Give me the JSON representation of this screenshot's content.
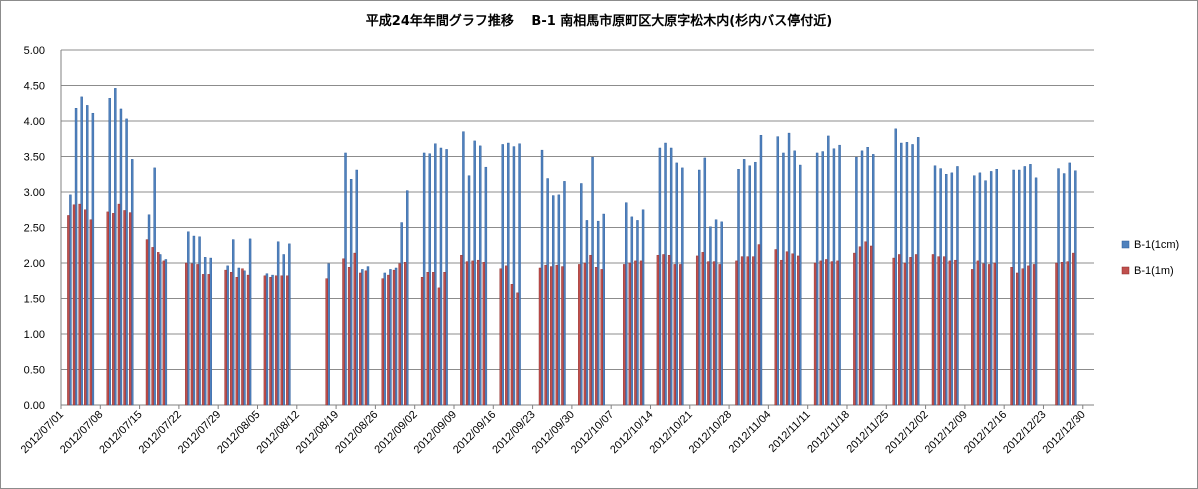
{
  "chart_data": {
    "type": "bar",
    "title": "平成24年年間グラフ推移　 B-1 南相馬市原町区大原字松木内(杉内バス停付近)",
    "xlabel": "",
    "ylabel": "",
    "ylim": [
      0,
      5
    ],
    "yticks": [
      "0.00",
      "0.50",
      "1.00",
      "1.50",
      "2.00",
      "2.50",
      "3.00",
      "3.50",
      "4.00",
      "4.50",
      "5.00"
    ],
    "grid": true,
    "legend_position": "right",
    "x_tick_labels": [
      "2012/07/01",
      "2012/07/08",
      "2012/07/15",
      "2012/07/22",
      "2012/07/29",
      "2012/08/05",
      "2012/08/12",
      "2012/08/19",
      "2012/08/26",
      "2012/09/02",
      "2012/09/09",
      "2012/09/16",
      "2012/09/23",
      "2012/09/30",
      "2012/10/07",
      "2012/10/14",
      "2012/10/21",
      "2012/10/28",
      "2012/11/04",
      "2012/11/11",
      "2012/11/18",
      "2012/11/25",
      "2012/12/02",
      "2012/12/09",
      "2012/12/16",
      "2012/12/23",
      "2012/12/30"
    ],
    "x_start": "2012/07/01",
    "x_end": "2012/12/31",
    "series": [
      {
        "name": "B-1(1cm)",
        "color": "#4f81bd",
        "edge": "#2a5a9a",
        "points": [
          [
            "2012/07/02",
            2.96
          ],
          [
            "2012/07/03",
            4.18
          ],
          [
            "2012/07/04",
            4.34
          ],
          [
            "2012/07/05",
            4.22
          ],
          [
            "2012/07/06",
            4.11
          ],
          [
            "2012/07/09",
            4.32
          ],
          [
            "2012/07/10",
            4.46
          ],
          [
            "2012/07/11",
            4.17
          ],
          [
            "2012/07/12",
            4.03
          ],
          [
            "2012/07/13",
            3.46
          ],
          [
            "2012/07/16",
            2.68
          ],
          [
            "2012/07/17",
            3.34
          ],
          [
            "2012/07/18",
            2.12
          ],
          [
            "2012/07/19",
            2.05
          ],
          [
            "2012/07/23",
            2.44
          ],
          [
            "2012/07/24",
            2.38
          ],
          [
            "2012/07/25",
            2.37
          ],
          [
            "2012/07/26",
            2.08
          ],
          [
            "2012/07/27",
            2.07
          ],
          [
            "2012/07/30",
            1.96
          ],
          [
            "2012/07/31",
            2.33
          ],
          [
            "2012/08/01",
            1.93
          ],
          [
            "2012/08/02",
            1.89
          ],
          [
            "2012/08/03",
            2.34
          ],
          [
            "2012/08/06",
            1.85
          ],
          [
            "2012/08/07",
            1.83
          ],
          [
            "2012/08/08",
            2.3
          ],
          [
            "2012/08/09",
            2.12
          ],
          [
            "2012/08/10",
            2.27
          ],
          [
            "2012/08/17",
            1.99
          ],
          [
            "2012/08/20",
            3.55
          ],
          [
            "2012/08/21",
            3.18
          ],
          [
            "2012/08/22",
            3.31
          ],
          [
            "2012/08/23",
            1.91
          ],
          [
            "2012/08/24",
            1.95
          ],
          [
            "2012/08/27",
            1.86
          ],
          [
            "2012/08/28",
            1.91
          ],
          [
            "2012/08/29",
            1.93
          ],
          [
            "2012/08/30",
            2.57
          ],
          [
            "2012/08/31",
            3.02
          ],
          [
            "2012/09/03",
            3.55
          ],
          [
            "2012/09/04",
            3.54
          ],
          [
            "2012/09/05",
            3.68
          ],
          [
            "2012/09/06",
            3.62
          ],
          [
            "2012/09/07",
            3.6
          ],
          [
            "2012/09/10",
            3.85
          ],
          [
            "2012/09/11",
            3.23
          ],
          [
            "2012/09/12",
            3.72
          ],
          [
            "2012/09/13",
            3.65
          ],
          [
            "2012/09/14",
            3.35
          ],
          [
            "2012/09/17",
            3.67
          ],
          [
            "2012/09/18",
            3.69
          ],
          [
            "2012/09/19",
            3.64
          ],
          [
            "2012/09/20",
            3.68
          ],
          [
            "2012/09/24",
            3.59
          ],
          [
            "2012/09/25",
            3.19
          ],
          [
            "2012/09/26",
            2.95
          ],
          [
            "2012/09/27",
            2.96
          ],
          [
            "2012/09/28",
            3.15
          ],
          [
            "2012/10/01",
            3.12
          ],
          [
            "2012/10/02",
            2.6
          ],
          [
            "2012/10/03",
            3.49
          ],
          [
            "2012/10/04",
            2.59
          ],
          [
            "2012/10/05",
            2.69
          ],
          [
            "2012/10/09",
            2.85
          ],
          [
            "2012/10/10",
            2.65
          ],
          [
            "2012/10/11",
            2.6
          ],
          [
            "2012/10/12",
            2.75
          ],
          [
            "2012/10/15",
            3.62
          ],
          [
            "2012/10/16",
            3.69
          ],
          [
            "2012/10/17",
            3.62
          ],
          [
            "2012/10/18",
            3.41
          ],
          [
            "2012/10/19",
            3.34
          ],
          [
            "2012/10/22",
            3.31
          ],
          [
            "2012/10/23",
            3.48
          ],
          [
            "2012/10/24",
            2.51
          ],
          [
            "2012/10/25",
            2.61
          ],
          [
            "2012/10/26",
            2.58
          ],
          [
            "2012/10/29",
            3.32
          ],
          [
            "2012/10/30",
            3.46
          ],
          [
            "2012/10/31",
            3.37
          ],
          [
            "2012/11/01",
            3.42
          ],
          [
            "2012/11/02",
            3.8
          ],
          [
            "2012/11/05",
            3.78
          ],
          [
            "2012/11/06",
            3.55
          ],
          [
            "2012/11/07",
            3.83
          ],
          [
            "2012/11/08",
            3.58
          ],
          [
            "2012/11/09",
            3.38
          ],
          [
            "2012/11/12",
            3.55
          ],
          [
            "2012/11/13",
            3.57
          ],
          [
            "2012/11/14",
            3.79
          ],
          [
            "2012/11/15",
            3.61
          ],
          [
            "2012/11/16",
            3.66
          ],
          [
            "2012/11/19",
            3.49
          ],
          [
            "2012/11/20",
            3.58
          ],
          [
            "2012/11/21",
            3.63
          ],
          [
            "2012/11/22",
            3.53
          ],
          [
            "2012/11/26",
            3.89
          ],
          [
            "2012/11/27",
            3.69
          ],
          [
            "2012/11/28",
            3.7
          ],
          [
            "2012/11/29",
            3.67
          ],
          [
            "2012/11/30",
            3.77
          ],
          [
            "2012/12/03",
            3.37
          ],
          [
            "2012/12/04",
            3.33
          ],
          [
            "2012/12/05",
            3.25
          ],
          [
            "2012/12/06",
            3.27
          ],
          [
            "2012/12/07",
            3.36
          ],
          [
            "2012/12/10",
            3.23
          ],
          [
            "2012/12/11",
            3.27
          ],
          [
            "2012/12/12",
            3.16
          ],
          [
            "2012/12/13",
            3.29
          ],
          [
            "2012/12/14",
            3.32
          ],
          [
            "2012/12/17",
            3.31
          ],
          [
            "2012/12/18",
            3.31
          ],
          [
            "2012/12/19",
            3.36
          ],
          [
            "2012/12/20",
            3.39
          ],
          [
            "2012/12/21",
            3.2
          ],
          [
            "2012/12/25",
            3.33
          ],
          [
            "2012/12/26",
            3.26
          ],
          [
            "2012/12/27",
            3.41
          ],
          [
            "2012/12/28",
            3.3
          ]
        ]
      },
      {
        "name": "B-1(1m)",
        "color": "#c0504d",
        "edge": "#8c2b29",
        "points": [
          [
            "2012/07/02",
            2.67
          ],
          [
            "2012/07/03",
            2.82
          ],
          [
            "2012/07/04",
            2.83
          ],
          [
            "2012/07/05",
            2.75
          ],
          [
            "2012/07/06",
            2.61
          ],
          [
            "2012/07/09",
            2.72
          ],
          [
            "2012/07/10",
            2.7
          ],
          [
            "2012/07/11",
            2.83
          ],
          [
            "2012/07/12",
            2.74
          ],
          [
            "2012/07/13",
            2.71
          ],
          [
            "2012/07/16",
            2.33
          ],
          [
            "2012/07/17",
            2.22
          ],
          [
            "2012/07/18",
            2.15
          ],
          [
            "2012/07/19",
            2.03
          ],
          [
            "2012/07/23",
            2.0
          ],
          [
            "2012/07/24",
            1.99
          ],
          [
            "2012/07/25",
            1.98
          ],
          [
            "2012/07/26",
            1.84
          ],
          [
            "2012/07/27",
            1.84
          ],
          [
            "2012/07/30",
            1.9
          ],
          [
            "2012/07/31",
            1.87
          ],
          [
            "2012/08/01",
            1.8
          ],
          [
            "2012/08/02",
            1.92
          ],
          [
            "2012/08/03",
            1.83
          ],
          [
            "2012/08/06",
            1.82
          ],
          [
            "2012/08/07",
            1.8
          ],
          [
            "2012/08/08",
            1.82
          ],
          [
            "2012/08/09",
            1.82
          ],
          [
            "2012/08/10",
            1.82
          ],
          [
            "2012/08/17",
            1.78
          ],
          [
            "2012/08/20",
            2.06
          ],
          [
            "2012/08/21",
            1.94
          ],
          [
            "2012/08/22",
            2.14
          ],
          [
            "2012/08/23",
            1.86
          ],
          [
            "2012/08/24",
            1.89
          ],
          [
            "2012/08/27",
            1.78
          ],
          [
            "2012/08/28",
            1.83
          ],
          [
            "2012/08/29",
            1.9
          ],
          [
            "2012/08/30",
            1.99
          ],
          [
            "2012/08/31",
            2.01
          ],
          [
            "2012/09/03",
            1.8
          ],
          [
            "2012/09/04",
            1.87
          ],
          [
            "2012/09/05",
            1.87
          ],
          [
            "2012/09/06",
            1.65
          ],
          [
            "2012/09/07",
            1.87
          ],
          [
            "2012/09/10",
            2.11
          ],
          [
            "2012/09/11",
            2.02
          ],
          [
            "2012/09/12",
            2.03
          ],
          [
            "2012/09/13",
            2.04
          ],
          [
            "2012/09/14",
            2.01
          ],
          [
            "2012/09/17",
            1.92
          ],
          [
            "2012/09/18",
            1.96
          ],
          [
            "2012/09/19",
            1.7
          ],
          [
            "2012/09/20",
            1.58
          ],
          [
            "2012/09/24",
            1.93
          ],
          [
            "2012/09/25",
            1.97
          ],
          [
            "2012/09/26",
            1.95
          ],
          [
            "2012/09/27",
            1.97
          ],
          [
            "2012/09/28",
            1.95
          ],
          [
            "2012/10/01",
            1.98
          ],
          [
            "2012/10/02",
            2.0
          ],
          [
            "2012/10/03",
            2.11
          ],
          [
            "2012/10/04",
            1.94
          ],
          [
            "2012/10/05",
            1.91
          ],
          [
            "2012/10/09",
            1.98
          ],
          [
            "2012/10/10",
            2.0
          ],
          [
            "2012/10/11",
            2.03
          ],
          [
            "2012/10/12",
            2.03
          ],
          [
            "2012/10/15",
            2.11
          ],
          [
            "2012/10/16",
            2.12
          ],
          [
            "2012/10/17",
            2.11
          ],
          [
            "2012/10/18",
            1.98
          ],
          [
            "2012/10/19",
            1.98
          ],
          [
            "2012/10/22",
            2.1
          ],
          [
            "2012/10/23",
            2.15
          ],
          [
            "2012/10/24",
            2.02
          ],
          [
            "2012/10/25",
            2.02
          ],
          [
            "2012/10/26",
            1.98
          ],
          [
            "2012/10/29",
            2.03
          ],
          [
            "2012/10/30",
            2.09
          ],
          [
            "2012/10/31",
            2.09
          ],
          [
            "2012/11/01",
            2.09
          ],
          [
            "2012/11/02",
            2.26
          ],
          [
            "2012/11/05",
            2.19
          ],
          [
            "2012/11/06",
            2.04
          ],
          [
            "2012/11/07",
            2.16
          ],
          [
            "2012/11/08",
            2.13
          ],
          [
            "2012/11/09",
            2.1
          ],
          [
            "2012/11/12",
            2.0
          ],
          [
            "2012/11/13",
            2.03
          ],
          [
            "2012/11/14",
            2.05
          ],
          [
            "2012/11/15",
            2.02
          ],
          [
            "2012/11/16",
            2.03
          ],
          [
            "2012/11/19",
            2.14
          ],
          [
            "2012/11/20",
            2.23
          ],
          [
            "2012/11/21",
            2.3
          ],
          [
            "2012/11/22",
            2.24
          ],
          [
            "2012/11/26",
            2.07
          ],
          [
            "2012/11/27",
            2.12
          ],
          [
            "2012/11/28",
            2.0
          ],
          [
            "2012/11/29",
            2.08
          ],
          [
            "2012/11/30",
            2.12
          ],
          [
            "2012/12/03",
            2.12
          ],
          [
            "2012/12/04",
            2.09
          ],
          [
            "2012/12/05",
            2.09
          ],
          [
            "2012/12/06",
            2.03
          ],
          [
            "2012/12/07",
            2.04
          ],
          [
            "2012/12/10",
            1.91
          ],
          [
            "2012/12/11",
            2.03
          ],
          [
            "2012/12/12",
            1.99
          ],
          [
            "2012/12/13",
            1.98
          ],
          [
            "2012/12/14",
            2.0
          ],
          [
            "2012/12/17",
            1.94
          ],
          [
            "2012/12/18",
            1.86
          ],
          [
            "2012/12/19",
            1.92
          ],
          [
            "2012/12/20",
            1.96
          ],
          [
            "2012/12/21",
            1.98
          ],
          [
            "2012/12/25",
            2.0
          ],
          [
            "2012/12/26",
            2.01
          ],
          [
            "2012/12/27",
            2.02
          ],
          [
            "2012/12/28",
            2.14
          ]
        ]
      }
    ]
  }
}
